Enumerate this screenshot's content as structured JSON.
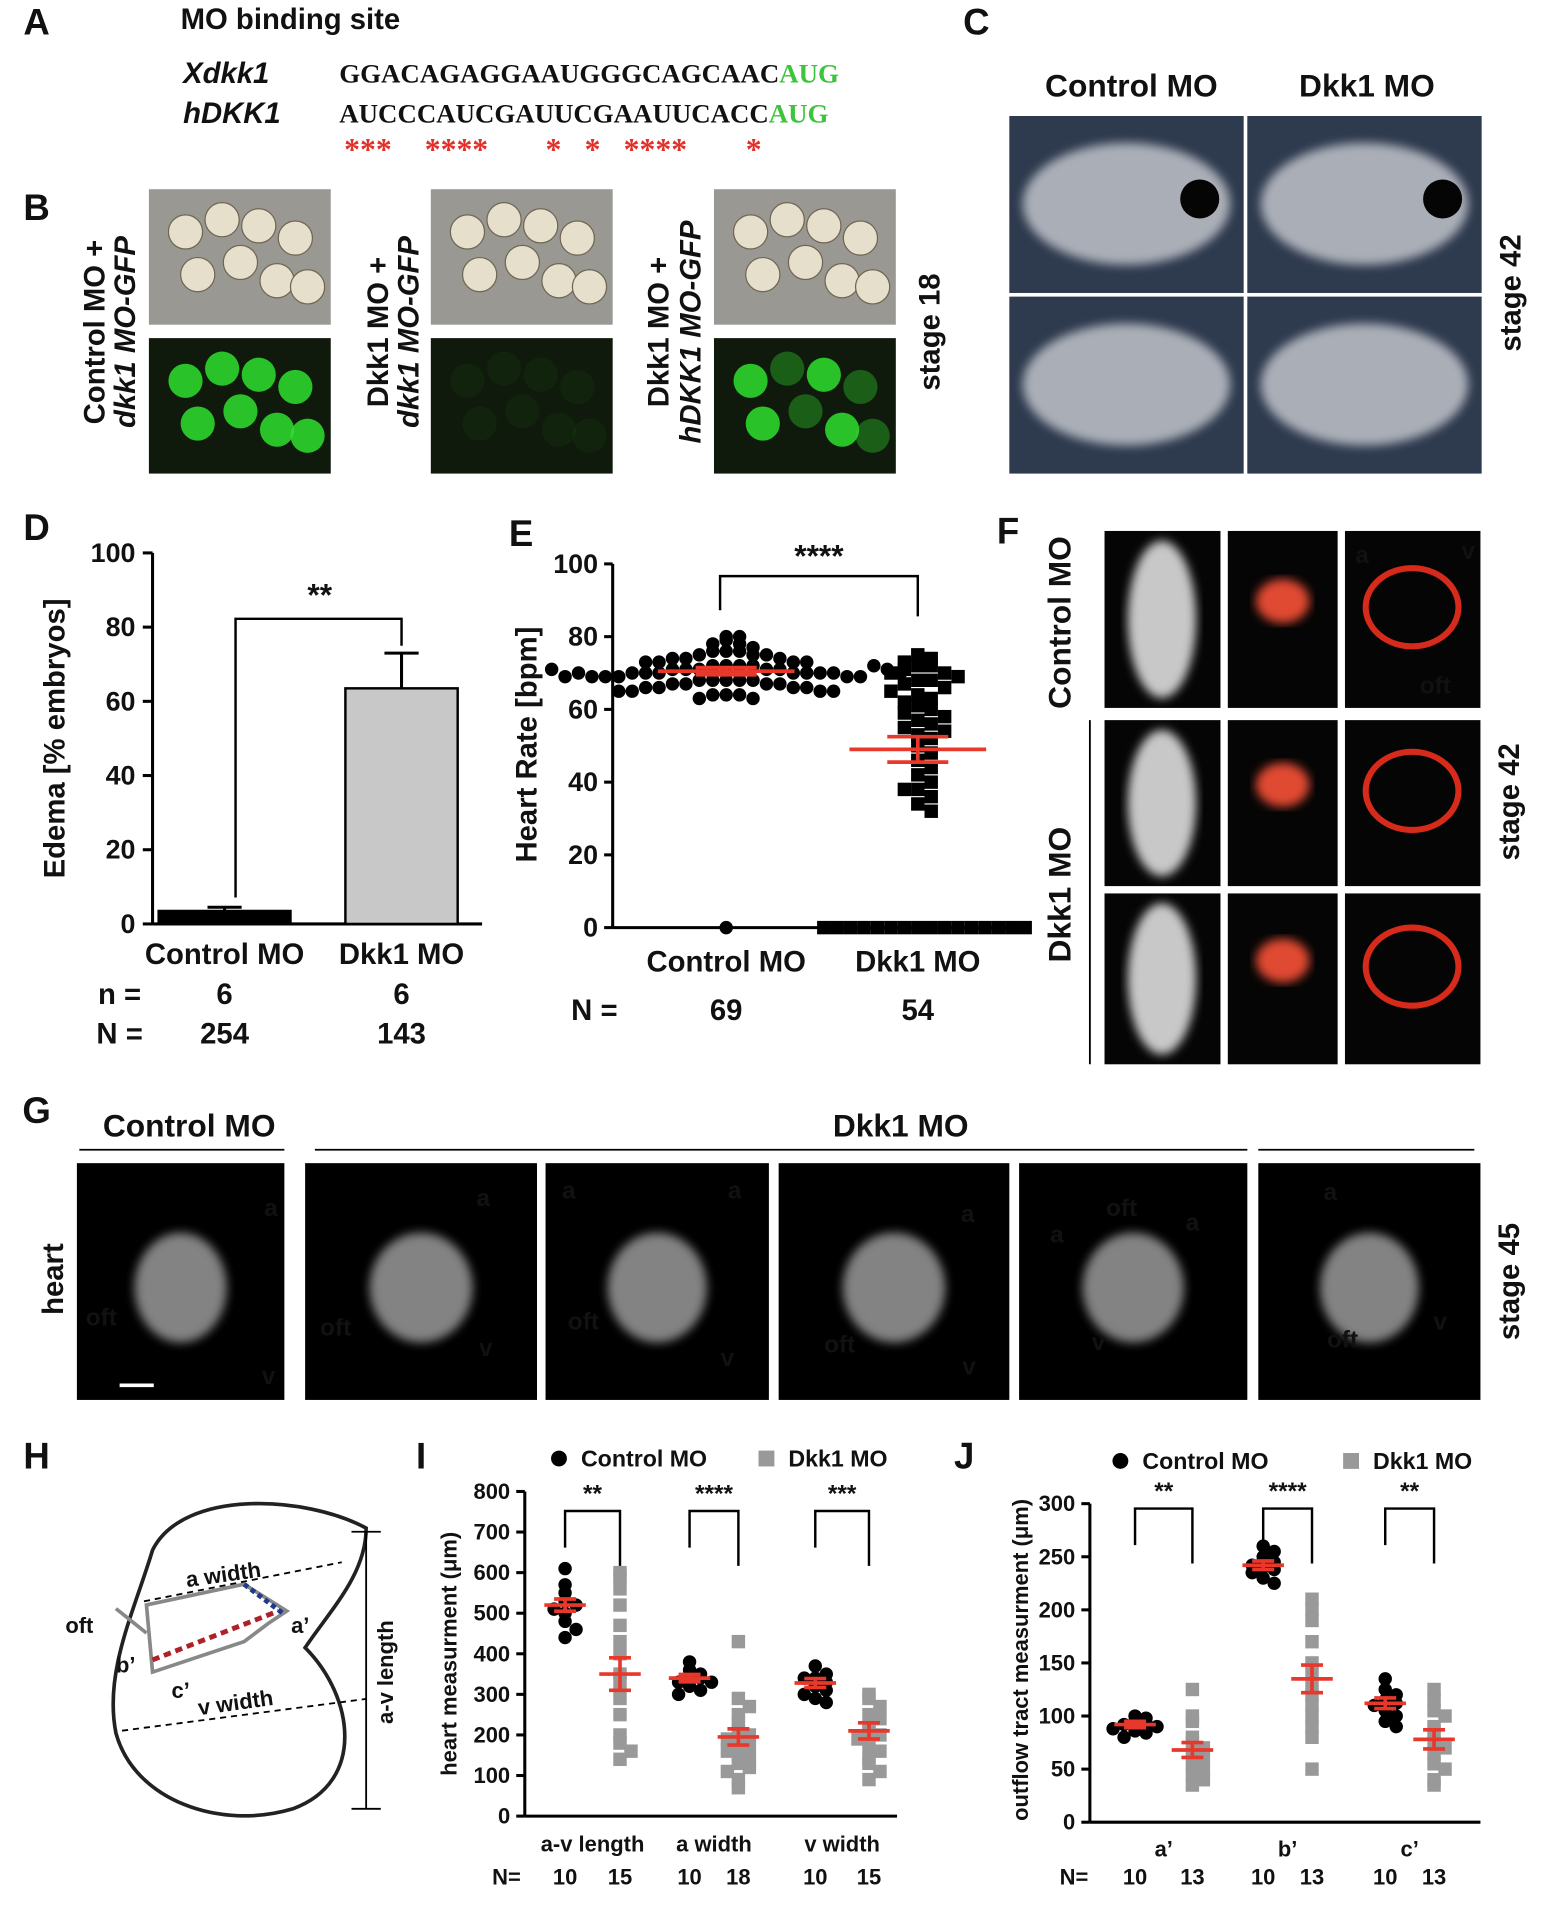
{
  "panels": {
    "letters": [
      "A",
      "B",
      "C",
      "D",
      "E",
      "F",
      "G",
      "H",
      "I",
      "J"
    ],
    "a": {
      "title": "MO binding site",
      "rows": [
        {
          "gene": "Xdkk1",
          "sequence": "GGACAGAGGAAUGGGCAGCAAC",
          "codon": "AUG"
        },
        {
          "gene": "hDKK1",
          "sequence": "AUCCCAUCGAUUCGAAUUCACC",
          "codon": "AUG"
        }
      ],
      "stars": [
        "***",
        "****",
        "*",
        "*",
        "****",
        "*"
      ]
    },
    "b": {
      "labels": [
        [
          "Control MO +",
          "dkk1 MO-GFP"
        ],
        [
          "Dkk1 MO +",
          "dkk1 MO-GFP"
        ],
        [
          "Dkk1 MO +",
          "hDKK1 MO-GFP"
        ]
      ],
      "stage": "stage 18"
    },
    "c": {
      "columns": [
        "Control MO",
        "Dkk1 MO"
      ],
      "stage": "stage 42"
    },
    "f": {
      "rows": [
        "Control MO",
        "Dkk1 MO"
      ],
      "labels": [
        "a",
        "v",
        "oft"
      ],
      "stage": "stage 42"
    },
    "g": {
      "groups": [
        "Control MO",
        "Dkk1 MO"
      ],
      "row": "heart",
      "stage": "stage 45",
      "labels": [
        [
          "a",
          "oft",
          "v"
        ],
        [
          "a",
          "oft",
          "v"
        ],
        [
          "a",
          "a",
          "oft",
          "v"
        ],
        [
          "a",
          "oft",
          "v"
        ],
        [
          "oft",
          "a",
          "a",
          "v"
        ],
        [
          "a",
          "oft",
          "v"
        ]
      ]
    },
    "h": {
      "labels": [
        "a width",
        "a’",
        "oft",
        "b’",
        "c’",
        "v width",
        "a-v length"
      ]
    }
  },
  "chart_data": [
    {
      "type": "bar",
      "ylabel": "Edema [% embryos]",
      "categories": [
        "Control MO",
        "Dkk1 MO"
      ],
      "values": [
        3.5,
        63.5
      ],
      "errors": [
        1,
        9.5
      ],
      "colors": [
        "#000000",
        "#c8c8c8"
      ],
      "ylim": [
        0,
        100
      ],
      "yticks": [
        0,
        20,
        40,
        60,
        80,
        100
      ],
      "significance": "**",
      "count_rows": [
        {
          "label": "n =",
          "values": [
            6,
            6
          ]
        },
        {
          "label": "N =",
          "values": [
            254,
            143
          ]
        }
      ]
    },
    {
      "type": "dot",
      "ylabel": "Heart Rate [bpm]",
      "categories": [
        "Control MO",
        "Dkk1 MO"
      ],
      "ylim": [
        0,
        100
      ],
      "yticks": [
        0,
        20,
        40,
        60,
        80,
        100
      ],
      "significance": "****",
      "mean_color": "#e8382b",
      "groups": [
        {
          "marker": "circle",
          "color": "#000000",
          "mean": 70.5,
          "sem": 1,
          "values": [
            0,
            80,
            80,
            79,
            78,
            78,
            77,
            76,
            76,
            76,
            75,
            75,
            75,
            74,
            74,
            74,
            73,
            73,
            73,
            73,
            72,
            72,
            72,
            72,
            71,
            71,
            71,
            71,
            71,
            70,
            70,
            70,
            70,
            70,
            70,
            70,
            69,
            69,
            69,
            69,
            69,
            68,
            68,
            68,
            68,
            68,
            67,
            67,
            67,
            67,
            66,
            66,
            66,
            66,
            65,
            65,
            65,
            65,
            64,
            64,
            64,
            63,
            63,
            72,
            70,
            71,
            69,
            70,
            71
          ]
        },
        {
          "marker": "square",
          "color": "#000000",
          "mean": 49,
          "sem": 3.5,
          "values": [
            0,
            0,
            0,
            0,
            0,
            0,
            0,
            0,
            0,
            0,
            0,
            0,
            0,
            0,
            0,
            0,
            75,
            74,
            73,
            72,
            72,
            71,
            70,
            70,
            69,
            68,
            68,
            67,
            66,
            65,
            64,
            63,
            62,
            61,
            60,
            59,
            58,
            57,
            56,
            55,
            54,
            53,
            52,
            50,
            48,
            46,
            44,
            42,
            40,
            38,
            36,
            34,
            32,
            38
          ]
        }
      ],
      "counts": {
        "label": "N =",
        "values": [
          69,
          54
        ]
      }
    },
    {
      "type": "dot",
      "ylabel": "heart measurment (μm)",
      "categories": [
        "a-v length",
        "a width",
        "v width"
      ],
      "ylim": [
        0,
        800
      ],
      "yticks": [
        0,
        100,
        200,
        300,
        400,
        500,
        600,
        700,
        800
      ],
      "significance": [
        "**",
        "****",
        "***"
      ],
      "mean_color": "#e8382b",
      "series": [
        {
          "name": "Control MO",
          "color": "#000000",
          "marker": "circle",
          "values": [
            [
              610,
              570,
              550,
              530,
              520,
              510,
              500,
              480,
              460,
              440
            ],
            [
              380,
              360,
              350,
              340,
              340,
              330,
              330,
              320,
              310,
              300
            ],
            [
              370,
              350,
              340,
              330,
              320,
              310,
              300,
              290,
              280,
              340
            ]
          ],
          "mean": [
            520,
            340,
            328
          ],
          "sem": [
            15,
            9,
            11
          ]
        },
        {
          "name": "Dkk1 MO",
          "color": "#999999",
          "marker": "square",
          "values": [
            [
              600,
              590,
              560,
              520,
              470,
              430,
              400,
              350,
              330,
              290,
              250,
              200,
              180,
              160,
              140
            ],
            [
              430,
              290,
              270,
              250,
              230,
              210,
              200,
              190,
              180,
              170,
              160,
              150,
              140,
              130,
              120,
              110,
              90,
              70
            ],
            [
              300,
              290,
              270,
              250,
              240,
              220,
              210,
              200,
              190,
              170,
              160,
              140,
              130,
              110,
              90
            ]
          ],
          "mean": [
            350,
            195,
            210
          ],
          "sem": [
            40,
            20,
            20
          ]
        }
      ],
      "counts": {
        "label": "N=",
        "values": [
          [
            10,
            15
          ],
          [
            10,
            18
          ],
          [
            10,
            15
          ]
        ]
      }
    },
    {
      "type": "dot",
      "ylabel": "outflow tract measurment (μm)",
      "categories": [
        "a’",
        "b’",
        "c’"
      ],
      "category_colors": [
        "#1f3a8a",
        "#b0202a",
        "#000000"
      ],
      "ylim": [
        0,
        300
      ],
      "yticks": [
        0,
        50,
        100,
        150,
        200,
        250,
        300
      ],
      "significance": [
        "**",
        "****",
        "**"
      ],
      "mean_color": "#e8382b",
      "series": [
        {
          "name": "Control MO",
          "color": "#000000",
          "marker": "circle",
          "values": [
            [
              100,
              98,
              95,
              93,
              92,
              90,
              88,
              86,
              84,
              80
            ],
            [
              260,
              255,
              250,
              245,
              242,
              240,
              238,
              235,
              230,
              225
            ],
            [
              135,
              125,
              120,
              115,
              112,
              110,
              105,
              100,
              95,
              90
            ]
          ],
          "mean": [
            92,
            242,
            112
          ],
          "sem": [
            3,
            4,
            5
          ]
        },
        {
          "name": "Dkk1 MO",
          "color": "#999999",
          "marker": "square",
          "values": [
            [
              125,
              100,
              95,
              80,
              75,
              70,
              65,
              60,
              55,
              50,
              45,
              40,
              35
            ],
            [
              210,
              200,
              190,
              170,
              150,
              140,
              130,
              120,
              110,
              100,
              90,
              80,
              50
            ],
            [
              125,
              115,
              105,
              100,
              90,
              85,
              75,
              70,
              65,
              55,
              50,
              40,
              35
            ]
          ],
          "mean": [
            68,
            135,
            78
          ],
          "sem": [
            7,
            13,
            9
          ]
        }
      ],
      "counts": {
        "label": "N=",
        "values": [
          [
            10,
            13
          ],
          [
            10,
            13
          ],
          [
            10,
            13
          ]
        ]
      }
    }
  ]
}
